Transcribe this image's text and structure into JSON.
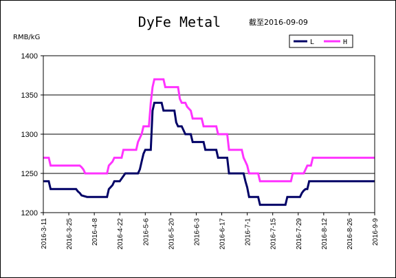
{
  "chart_data": {
    "type": "line",
    "title": "DyFe Metal",
    "subtitle": "截至2016-09-09",
    "ylabel": "RMB/kG",
    "xlabel": "",
    "ylim": [
      1200,
      1400
    ],
    "yticks": [
      1200,
      1250,
      1300,
      1350,
      1400
    ],
    "x_tick_labels": [
      "2016-3-11",
      "2016-3-25",
      "2016-4-8",
      "2016-4-22",
      "2016-5-6",
      "2016-5-20",
      "2016-6-3",
      "2016-6-17",
      "2016-7-1",
      "2016-7-15",
      "2016-7-29",
      "2016-8-12",
      "2016-8-26",
      "2016-9-9"
    ],
    "x_start": "2016-03-11",
    "x_end": "2016-09-09",
    "grid": true,
    "legend_position": "top-right",
    "series": [
      {
        "name": "L",
        "color": "#000066",
        "points": [
          [
            "2016-03-11",
            1240
          ],
          [
            "2016-03-14",
            1240
          ],
          [
            "2016-03-15",
            1230
          ],
          [
            "2016-03-29",
            1230
          ],
          [
            "2016-03-30",
            1227
          ],
          [
            "2016-03-31",
            1225
          ],
          [
            "2016-04-01",
            1222
          ],
          [
            "2016-04-04",
            1220
          ],
          [
            "2016-04-15",
            1220
          ],
          [
            "2016-04-16",
            1230
          ],
          [
            "2016-04-18",
            1235
          ],
          [
            "2016-04-19",
            1240
          ],
          [
            "2016-04-22",
            1240
          ],
          [
            "2016-04-25",
            1250
          ],
          [
            "2016-05-02",
            1250
          ],
          [
            "2016-05-03",
            1255
          ],
          [
            "2016-05-04",
            1265
          ],
          [
            "2016-05-05",
            1275
          ],
          [
            "2016-05-06",
            1280
          ],
          [
            "2016-05-09",
            1280
          ],
          [
            "2016-05-10",
            1330
          ],
          [
            "2016-05-11",
            1340
          ],
          [
            "2016-05-15",
            1340
          ],
          [
            "2016-05-16",
            1330
          ],
          [
            "2016-05-22",
            1330
          ],
          [
            "2016-05-23",
            1315
          ],
          [
            "2016-05-24",
            1310
          ],
          [
            "2016-05-26",
            1310
          ],
          [
            "2016-05-28",
            1300
          ],
          [
            "2016-05-31",
            1300
          ],
          [
            "2016-06-01",
            1290
          ],
          [
            "2016-06-07",
            1290
          ],
          [
            "2016-06-08",
            1280
          ],
          [
            "2016-06-14",
            1280
          ],
          [
            "2016-06-15",
            1270
          ],
          [
            "2016-06-20",
            1270
          ],
          [
            "2016-06-21",
            1250
          ],
          [
            "2016-06-29",
            1250
          ],
          [
            "2016-06-30",
            1240
          ],
          [
            "2016-07-01",
            1232
          ],
          [
            "2016-07-02",
            1220
          ],
          [
            "2016-07-07",
            1220
          ],
          [
            "2016-07-08",
            1210
          ],
          [
            "2016-07-22",
            1210
          ],
          [
            "2016-07-23",
            1220
          ],
          [
            "2016-07-30",
            1220
          ],
          [
            "2016-07-31",
            1225
          ],
          [
            "2016-08-01",
            1228
          ],
          [
            "2016-08-02",
            1230
          ],
          [
            "2016-08-03",
            1230
          ],
          [
            "2016-08-04",
            1240
          ],
          [
            "2016-09-09",
            1240
          ]
        ]
      },
      {
        "name": "H",
        "color": "#ff33ff",
        "points": [
          [
            "2016-03-11",
            1270
          ],
          [
            "2016-03-14",
            1270
          ],
          [
            "2016-03-15",
            1260
          ],
          [
            "2016-03-31",
            1260
          ],
          [
            "2016-04-01",
            1258
          ],
          [
            "2016-04-02",
            1255
          ],
          [
            "2016-04-03",
            1250
          ],
          [
            "2016-04-15",
            1250
          ],
          [
            "2016-04-16",
            1260
          ],
          [
            "2016-04-18",
            1265
          ],
          [
            "2016-04-19",
            1270
          ],
          [
            "2016-04-23",
            1270
          ],
          [
            "2016-04-24",
            1280
          ],
          [
            "2016-05-01",
            1280
          ],
          [
            "2016-05-02",
            1290
          ],
          [
            "2016-05-04",
            1300
          ],
          [
            "2016-05-05",
            1310
          ],
          [
            "2016-05-08",
            1310
          ],
          [
            "2016-05-09",
            1340
          ],
          [
            "2016-05-10",
            1360
          ],
          [
            "2016-05-11",
            1370
          ],
          [
            "2016-05-16",
            1370
          ],
          [
            "2016-05-17",
            1360
          ],
          [
            "2016-05-24",
            1360
          ],
          [
            "2016-05-25",
            1345
          ],
          [
            "2016-05-26",
            1340
          ],
          [
            "2016-05-28",
            1340
          ],
          [
            "2016-05-29",
            1335
          ],
          [
            "2016-05-31",
            1330
          ],
          [
            "2016-06-01",
            1320
          ],
          [
            "2016-06-06",
            1320
          ],
          [
            "2016-06-07",
            1310
          ],
          [
            "2016-06-14",
            1310
          ],
          [
            "2016-06-15",
            1300
          ],
          [
            "2016-06-20",
            1300
          ],
          [
            "2016-06-21",
            1280
          ],
          [
            "2016-06-28",
            1280
          ],
          [
            "2016-06-29",
            1270
          ],
          [
            "2016-06-30",
            1265
          ],
          [
            "2016-07-01",
            1260
          ],
          [
            "2016-07-02",
            1250
          ],
          [
            "2016-07-07",
            1250
          ],
          [
            "2016-07-08",
            1240
          ],
          [
            "2016-07-25",
            1240
          ],
          [
            "2016-07-26",
            1250
          ],
          [
            "2016-08-01",
            1250
          ],
          [
            "2016-08-02",
            1255
          ],
          [
            "2016-08-03",
            1260
          ],
          [
            "2016-08-05",
            1260
          ],
          [
            "2016-08-06",
            1270
          ],
          [
            "2016-09-09",
            1270
          ]
        ]
      }
    ]
  }
}
